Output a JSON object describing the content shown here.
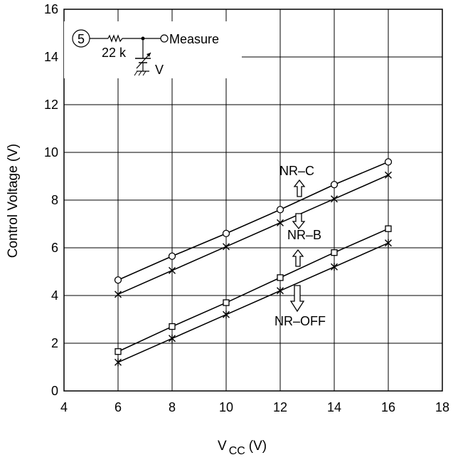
{
  "chart_data": {
    "type": "line",
    "xlabel_main": "V",
    "xlabel_sub": "CC",
    "xlabel_unit": "(V)",
    "ylabel": "Control Voltage (V)",
    "xlim": [
      4,
      18
    ],
    "ylim": [
      0,
      16
    ],
    "x_ticks": [
      "4",
      "6",
      "8",
      "10",
      "12",
      "14",
      "16",
      "18"
    ],
    "y_ticks": [
      "0",
      "2",
      "4",
      "6",
      "8",
      "10",
      "12",
      "14",
      "16"
    ],
    "grid": true,
    "x": [
      6,
      8,
      10,
      12,
      14,
      16
    ],
    "series": [
      {
        "marker": "circle",
        "values": [
          4.65,
          5.65,
          6.6,
          7.6,
          8.65,
          9.6
        ]
      },
      {
        "marker": "x",
        "values": [
          4.05,
          5.05,
          6.05,
          7.05,
          8.05,
          9.05
        ]
      },
      {
        "marker": "square",
        "values": [
          1.65,
          2.7,
          3.7,
          4.75,
          5.8,
          6.8
        ]
      },
      {
        "marker": "star",
        "values": [
          1.2,
          2.2,
          3.2,
          4.2,
          5.2,
          6.2
        ]
      }
    ],
    "annotations": {
      "nr_c": "NR–C",
      "nr_b": "NR–B",
      "nr_off": "NR–OFF"
    },
    "inset": {
      "pin": "5",
      "resistor": "22 k",
      "source": "V",
      "measure": "Measure"
    }
  }
}
